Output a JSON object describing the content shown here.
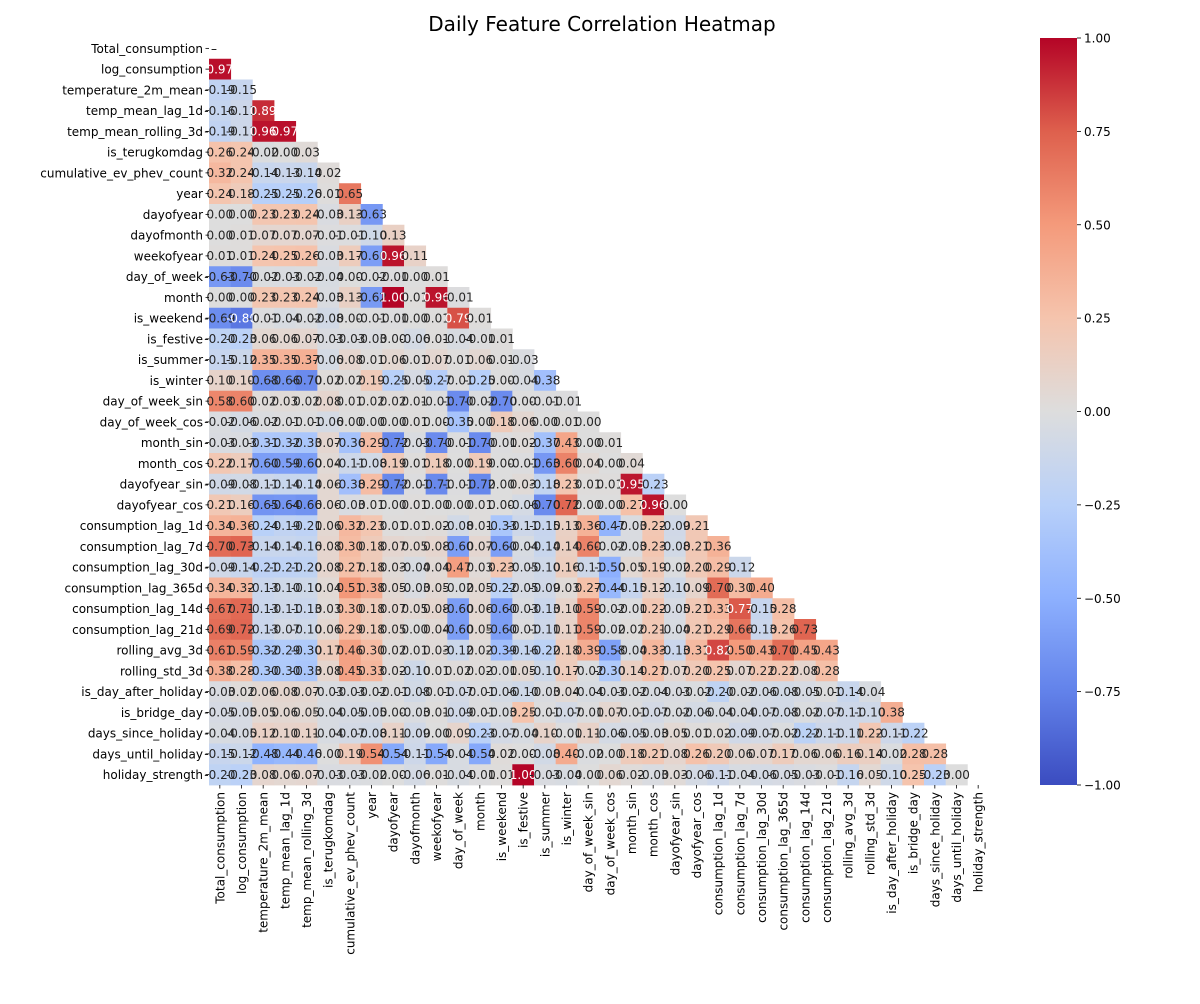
{
  "chart_data": {
    "type": "heatmap",
    "title": "Daily Feature Correlation Heatmap",
    "triangle": "lower",
    "value_format": "2dp",
    "variables": [
      "Total_consumption",
      "log_consumption",
      "temperature_2m_mean",
      "temp_mean_lag_1d",
      "temp_mean_rolling_3d",
      "is_terugkomdag",
      "cumulative_ev_phev_count",
      "year",
      "dayofyear",
      "dayofmonth",
      "weekofyear",
      "day_of_week",
      "month",
      "is_weekend",
      "is_festive",
      "is_summer",
      "is_winter",
      "day_of_week_sin",
      "day_of_week_cos",
      "month_sin",
      "month_cos",
      "dayofyear_sin",
      "dayofyear_cos",
      "consumption_lag_1d",
      "consumption_lag_7d",
      "consumption_lag_30d",
      "consumption_lag_365d",
      "consumption_lag_14d",
      "consumption_lag_21d",
      "rolling_avg_3d",
      "rolling_std_3d",
      "is_day_after_holiday",
      "is_bridge_day",
      "days_since_holiday",
      "days_until_holiday",
      "holiday_strength"
    ],
    "lower_triangle_values": [
      [],
      [
        0.97
      ],
      [
        -0.19,
        -0.15
      ],
      [
        -0.16,
        -0.11,
        0.89
      ],
      [
        -0.19,
        -0.11,
        0.96,
        0.97
      ],
      [
        0.26,
        0.24,
        -0.02,
        -0.0,
        0.03
      ],
      [
        0.32,
        0.24,
        -0.14,
        -0.13,
        -0.14,
        0.02
      ],
      [
        0.24,
        0.18,
        -0.25,
        -0.25,
        -0.26,
        0.01,
        0.65
      ],
      [
        -0.0,
        -0.0,
        0.23,
        0.23,
        0.24,
        -0.03,
        0.13,
        -0.63
      ],
      [
        -0.0,
        0.01,
        0.07,
        0.07,
        0.07,
        -0.01,
        -0.01,
        -0.1,
        0.13
      ],
      [
        0.01,
        0.01,
        0.24,
        0.25,
        0.26,
        -0.03,
        0.17,
        -0.6,
        0.96,
        0.11
      ],
      [
        -0.63,
        -0.7,
        -0.02,
        -0.03,
        -0.02,
        -0.04,
        -0.0,
        -0.02,
        -0.01,
        -0.0,
        0.01
      ],
      [
        -0.0,
        -0.0,
        0.23,
        0.23,
        0.24,
        -0.03,
        0.13,
        -0.62,
        1.0,
        0.01,
        0.96,
        -0.01
      ],
      [
        -0.69,
        -0.8,
        -0.01,
        -0.04,
        -0.02,
        -0.08,
        -0.0,
        -0.01,
        -0.01,
        -0.0,
        0.01,
        0.79,
        0.01
      ],
      [
        -0.2,
        -0.23,
        0.06,
        0.06,
        0.07,
        -0.03,
        -0.03,
        -0.03,
        -0.0,
        -0.06,
        0.01,
        -0.04,
        -0.01,
        0.01
      ],
      [
        -0.15,
        -0.12,
        0.35,
        0.35,
        0.37,
        -0.06,
        0.08,
        0.01,
        0.06,
        0.01,
        0.07,
        0.01,
        0.06,
        0.01,
        -0.03
      ],
      [
        0.1,
        0.1,
        -0.68,
        -0.66,
        -0.7,
        0.02,
        0.02,
        0.19,
        -0.25,
        -0.05,
        -0.27,
        -0.01,
        -0.25,
        -0.0,
        -0.04,
        -0.38
      ],
      [
        0.58,
        0.6,
        0.02,
        0.03,
        0.02,
        0.08,
        0.01,
        0.02,
        0.02,
        0.01,
        -0.01,
        -0.7,
        -0.02,
        -0.7,
        -0.0,
        -0.01,
        -0.01
      ],
      [
        -0.02,
        -0.06,
        -0.02,
        -0.01,
        -0.01,
        -0.06,
        0.0,
        0.0,
        -0.0,
        0.01,
        -0.0,
        -0.35,
        0.0,
        0.18,
        0.06,
        0.0,
        0.01,
        0.0
      ],
      [
        -0.03,
        -0.03,
        -0.31,
        -0.32,
        -0.33,
        0.07,
        -0.36,
        0.29,
        -0.72,
        -0.03,
        -0.7,
        -0.01,
        -0.7,
        -0.01,
        0.02,
        -0.37,
        0.43,
        0.0,
        0.01
      ],
      [
        0.22,
        0.17,
        -0.6,
        -0.59,
        -0.6,
        0.04,
        -0.11,
        -0.08,
        0.19,
        0.01,
        0.18,
        0.0,
        0.19,
        -0.0,
        -0.01,
        -0.63,
        0.6,
        0.04,
        -0.0,
        0.04
      ],
      [
        -0.09,
        -0.08,
        -0.11,
        -0.14,
        -0.14,
        0.06,
        -0.38,
        0.29,
        -0.72,
        -0.01,
        -0.71,
        -0.01,
        -0.72,
        -0.0,
        0.03,
        -0.18,
        0.23,
        0.01,
        0.01,
        0.95,
        -0.23
      ],
      [
        0.21,
        0.16,
        -0.65,
        -0.64,
        -0.66,
        0.06,
        -0.03,
        0.01,
        0.0,
        0.01,
        0.0,
        0.0,
        0.01,
        0.0,
        -0.06,
        -0.7,
        0.72,
        -0.0,
        0.0,
        0.27,
        0.96,
        0.0
      ],
      [
        0.34,
        0.36,
        -0.24,
        -0.19,
        -0.21,
        0.06,
        0.32,
        0.23,
        0.01,
        0.01,
        0.02,
        -0.08,
        0.01,
        -0.33,
        -0.11,
        -0.15,
        0.13,
        0.36,
        -0.47,
        -0.03,
        0.22,
        -0.09,
        0.21
      ],
      [
        0.7,
        0.73,
        -0.14,
        -0.14,
        -0.16,
        0.08,
        0.3,
        0.18,
        0.07,
        0.05,
        0.08,
        -0.6,
        0.07,
        -0.6,
        -0.04,
        -0.14,
        0.14,
        0.6,
        -0.02,
        -0.03,
        0.23,
        -0.08,
        0.21,
        0.36
      ],
      [
        -0.09,
        -0.14,
        -0.21,
        -0.21,
        -0.2,
        0.08,
        0.27,
        0.18,
        0.03,
        -0.04,
        0.04,
        0.47,
        0.03,
        0.23,
        -0.05,
        -0.1,
        0.16,
        -0.11,
        -0.5,
        0.05,
        0.19,
        -0.02,
        0.2,
        0.29,
        -0.12
      ],
      [
        0.34,
        0.32,
        -0.13,
        -0.1,
        -0.1,
        0.04,
        0.51,
        0.38,
        0.05,
        -0.03,
        0.05,
        -0.02,
        0.05,
        -0.22,
        -0.05,
        -0.09,
        0.03,
        0.27,
        -0.44,
        -0.15,
        0.12,
        -0.1,
        0.09,
        0.7,
        0.3,
        0.4
      ],
      [
        0.67,
        0.71,
        -0.13,
        -0.11,
        -0.13,
        0.03,
        0.3,
        0.18,
        0.07,
        0.05,
        0.08,
        -0.6,
        0.06,
        -0.6,
        -0.03,
        -0.13,
        0.1,
        0.59,
        -0.02,
        -0.01,
        0.22,
        -0.05,
        0.21,
        0.33,
        0.77,
        -0.15,
        0.28
      ],
      [
        0.69,
        0.72,
        -0.13,
        -0.07,
        -0.1,
        0.06,
        0.29,
        0.18,
        0.05,
        0.0,
        0.04,
        -0.6,
        0.05,
        -0.6,
        -0.01,
        -0.11,
        0.11,
        0.59,
        -0.02,
        0.02,
        0.21,
        -0.04,
        0.21,
        0.29,
        0.66,
        -0.13,
        0.26,
        0.73
      ],
      [
        0.61,
        0.59,
        -0.32,
        -0.29,
        -0.3,
        0.17,
        0.46,
        0.3,
        0.02,
        0.01,
        0.03,
        -0.12,
        0.02,
        -0.39,
        -0.16,
        -0.22,
        0.18,
        0.39,
        -0.58,
        -0.04,
        0.33,
        -0.13,
        0.31,
        0.82,
        0.5,
        0.43,
        0.7,
        0.45,
        0.43
      ],
      [
        0.38,
        0.28,
        -0.3,
        -0.3,
        -0.33,
        0.08,
        0.45,
        0.33,
        0.02,
        -0.1,
        0.01,
        0.02,
        0.02,
        -0.01,
        0.05,
        -0.1,
        0.17,
        -0.02,
        -0.3,
        0.14,
        0.27,
        0.07,
        0.2,
        0.25,
        0.07,
        0.22,
        0.22,
        0.08,
        0.28
      ],
      [
        -0.03,
        0.02,
        0.06,
        0.08,
        0.07,
        -0.03,
        -0.03,
        -0.02,
        -0.01,
        -0.08,
        -0.01,
        -0.07,
        -0.01,
        -0.06,
        -0.1,
        -0.03,
        0.04,
        -0.04,
        -0.03,
        -0.02,
        -0.04,
        -0.03,
        -0.02,
        -0.2,
        -0.02,
        -0.06,
        -0.08,
        -0.05,
        -0.01,
        -0.14,
        -0.04
      ],
      [
        -0.05,
        -0.05,
        0.05,
        0.06,
        0.05,
        -0.04,
        -0.05,
        -0.05,
        -0.0,
        -0.03,
        0.01,
        -0.09,
        -0.01,
        -0.03,
        0.25,
        -0.01,
        -0.07,
        -0.01,
        0.07,
        -0.01,
        -0.07,
        -0.02,
        -0.06,
        -0.04,
        -0.04,
        -0.07,
        -0.08,
        -0.02,
        -0.07,
        -0.11,
        -0.1,
        0.38
      ],
      [
        -0.04,
        -0.05,
        0.12,
        0.1,
        0.11,
        -0.04,
        -0.07,
        -0.08,
        0.11,
        -0.09,
        -0.0,
        0.09,
        -0.23,
        -0.07,
        -0.04,
        0.1,
        -0.01,
        0.11,
        -0.06,
        -0.05,
        -0.03,
        0.05,
        0.01,
        0.02,
        -0.09,
        -0.07,
        -0.02,
        -0.22,
        -0.11,
        -0.11,
        0.22,
        -0.11,
        -0.22
      ],
      [
        -0.15,
        -0.12,
        -0.48,
        -0.44,
        -0.46,
        0.0,
        0.19,
        0.54,
        -0.54,
        -0.11,
        -0.54,
        -0.04,
        -0.54,
        0.02,
        0.0,
        -0.08,
        0.4,
        -0.02,
        0.0,
        0.18,
        0.21,
        0.08,
        0.26,
        0.2,
        0.06,
        0.07,
        0.17,
        0.06,
        0.06,
        0.16,
        0.14,
        -0.02,
        0.28,
        0.28
      ],
      [
        -0.2,
        -0.23,
        0.08,
        0.06,
        0.07,
        -0.03,
        -0.03,
        -0.02,
        -0.0,
        -0.06,
        0.01,
        -0.04,
        -0.01,
        0.01,
        1.0,
        -0.03,
        -0.04,
        -0.0,
        0.06,
        0.02,
        -0.03,
        0.03,
        -0.06,
        -0.11,
        -0.04,
        -0.06,
        -0.05,
        -0.03,
        -0.01,
        -0.16,
        0.05,
        -0.1,
        0.25,
        -0.23,
        -0.0
      ]
    ],
    "colorbar": {
      "colormap": "coolwarm",
      "vmin": -1.0,
      "vmax": 1.0,
      "ticks": [
        "1.00",
        "0.75",
        "0.50",
        "0.25",
        "0.00",
        "−0.25",
        "−0.50",
        "−0.75",
        "−1.00"
      ]
    },
    "first_cell_label": "–"
  }
}
